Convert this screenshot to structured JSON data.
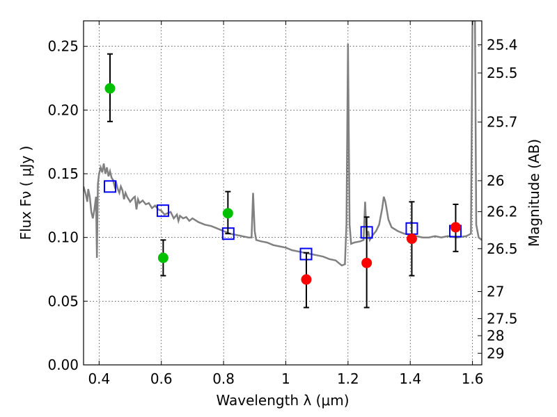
{
  "chart_data": {
    "type": "scatter",
    "title": "",
    "xlabel": "Wavelength  λ (μm)",
    "ylabel": "Flux  Fν  ( μJy )",
    "ylabel_right": "Magnitude (AB)",
    "xlim": [
      0.35,
      1.63
    ],
    "ylim": [
      0.0,
      0.27
    ],
    "grid": true,
    "x_ticks": [
      {
        "v": 0.4,
        "label": "0.4"
      },
      {
        "v": 0.6,
        "label": "0.6"
      },
      {
        "v": 0.8,
        "label": "0.8"
      },
      {
        "v": 1.0,
        "label": "1"
      },
      {
        "v": 1.2,
        "label": "1.2"
      },
      {
        "v": 1.4,
        "label": "1.4"
      },
      {
        "v": 1.6,
        "label": "1.6"
      }
    ],
    "y_ticks": [
      {
        "v": 0.0,
        "label": "0.00"
      },
      {
        "v": 0.05,
        "label": "0.05"
      },
      {
        "v": 0.1,
        "label": "0.10"
      },
      {
        "v": 0.15,
        "label": "0.15"
      },
      {
        "v": 0.2,
        "label": "0.20"
      },
      {
        "v": 0.25,
        "label": "0.25"
      }
    ],
    "mag_ticks": [
      "25.4",
      "25.5",
      "25.7",
      "26",
      "26.2",
      "26.5",
      "27",
      "27.5",
      "28",
      "29"
    ],
    "series": [
      {
        "kind": "model_spectrum",
        "color": "#808080",
        "points": [
          [
            0.35,
            0.14
          ],
          [
            0.357,
            0.134
          ],
          [
            0.362,
            0.128
          ],
          [
            0.365,
            0.138
          ],
          [
            0.37,
            0.132
          ],
          [
            0.375,
            0.12
          ],
          [
            0.38,
            0.115
          ],
          [
            0.385,
            0.122
          ],
          [
            0.39,
            0.132
          ],
          [
            0.393,
            0.084
          ],
          [
            0.396,
            0.142
          ],
          [
            0.4,
            0.15
          ],
          [
            0.405,
            0.155
          ],
          [
            0.41,
            0.151
          ],
          [
            0.415,
            0.158
          ],
          [
            0.42,
            0.15
          ],
          [
            0.425,
            0.155
          ],
          [
            0.43,
            0.148
          ],
          [
            0.435,
            0.152
          ],
          [
            0.44,
            0.147
          ],
          [
            0.445,
            0.145
          ],
          [
            0.45,
            0.14
          ],
          [
            0.455,
            0.143
          ],
          [
            0.46,
            0.138
          ],
          [
            0.465,
            0.135
          ],
          [
            0.47,
            0.14
          ],
          [
            0.475,
            0.137
          ],
          [
            0.48,
            0.13
          ],
          [
            0.485,
            0.135
          ],
          [
            0.49,
            0.132
          ],
          [
            0.5,
            0.128
          ],
          [
            0.51,
            0.131
          ],
          [
            0.515,
            0.132
          ],
          [
            0.52,
            0.122
          ],
          [
            0.525,
            0.13
          ],
          [
            0.53,
            0.127
          ],
          [
            0.54,
            0.129
          ],
          [
            0.55,
            0.126
          ],
          [
            0.56,
            0.127
          ],
          [
            0.57,
            0.123
          ],
          [
            0.58,
            0.125
          ],
          [
            0.59,
            0.122
          ],
          [
            0.6,
            0.121
          ],
          [
            0.61,
            0.118
          ],
          [
            0.62,
            0.119
          ],
          [
            0.63,
            0.12
          ],
          [
            0.64,
            0.115
          ],
          [
            0.65,
            0.118
          ],
          [
            0.655,
            0.113
          ],
          [
            0.66,
            0.117
          ],
          [
            0.67,
            0.115
          ],
          [
            0.68,
            0.116
          ],
          [
            0.69,
            0.113
          ],
          [
            0.7,
            0.115
          ],
          [
            0.72,
            0.112
          ],
          [
            0.74,
            0.11
          ],
          [
            0.76,
            0.109
          ],
          [
            0.78,
            0.107
          ],
          [
            0.8,
            0.105
          ],
          [
            0.82,
            0.103
          ],
          [
            0.84,
            0.102
          ],
          [
            0.86,
            0.101
          ],
          [
            0.88,
            0.1
          ],
          [
            0.89,
            0.1
          ],
          [
            0.895,
            0.135
          ],
          [
            0.9,
            0.105
          ],
          [
            0.905,
            0.098
          ],
          [
            0.92,
            0.097
          ],
          [
            0.94,
            0.096
          ],
          [
            0.96,
            0.094
          ],
          [
            0.98,
            0.093
          ],
          [
            1.0,
            0.092
          ],
          [
            1.02,
            0.09
          ],
          [
            1.04,
            0.089
          ],
          [
            1.06,
            0.088
          ],
          [
            1.08,
            0.087
          ],
          [
            1.1,
            0.086
          ],
          [
            1.12,
            0.085
          ],
          [
            1.14,
            0.083
          ],
          [
            1.16,
            0.082
          ],
          [
            1.17,
            0.08
          ],
          [
            1.18,
            0.078
          ],
          [
            1.19,
            0.079
          ],
          [
            1.195,
            0.11
          ],
          [
            1.2,
            0.252
          ],
          [
            1.205,
            0.11
          ],
          [
            1.21,
            0.095
          ],
          [
            1.22,
            0.096
          ],
          [
            1.24,
            0.097
          ],
          [
            1.25,
            0.098
          ],
          [
            1.255,
            0.128
          ],
          [
            1.26,
            0.1
          ],
          [
            1.265,
            0.105
          ],
          [
            1.27,
            0.098
          ],
          [
            1.28,
            0.102
          ],
          [
            1.29,
            0.105
          ],
          [
            1.3,
            0.11
          ],
          [
            1.31,
            0.123
          ],
          [
            1.315,
            0.132
          ],
          [
            1.32,
            0.128
          ],
          [
            1.33,
            0.114
          ],
          [
            1.34,
            0.108
          ],
          [
            1.36,
            0.105
          ],
          [
            1.38,
            0.103
          ],
          [
            1.4,
            0.102
          ],
          [
            1.42,
            0.101
          ],
          [
            1.44,
            0.1
          ],
          [
            1.46,
            0.1
          ],
          [
            1.48,
            0.101
          ],
          [
            1.5,
            0.1
          ],
          [
            1.52,
            0.101
          ],
          [
            1.55,
            0.1
          ],
          [
            1.58,
            0.101
          ],
          [
            1.595,
            0.103
          ],
          [
            1.6,
            0.27
          ],
          [
            1.608,
            0.27
          ],
          [
            1.612,
            0.11
          ],
          [
            1.62,
            0.1
          ],
          [
            1.63,
            0.098
          ]
        ]
      },
      {
        "kind": "model_photometry",
        "marker": "open-square",
        "color": "#0000ff",
        "x": [
          0.435,
          0.605,
          0.815,
          1.065,
          1.26,
          1.405,
          1.545
        ],
        "y": [
          0.14,
          0.121,
          0.103,
          0.087,
          0.104,
          0.107,
          0.105
        ]
      },
      {
        "kind": "observed_detected",
        "marker": "filled-circle",
        "color": "#00c000",
        "x": [
          0.435,
          0.606,
          0.814
        ],
        "y": [
          0.217,
          0.084,
          0.119
        ],
        "yerr_low": [
          0.191,
          0.07,
          0.103
        ],
        "yerr_high": [
          0.244,
          0.098,
          0.136
        ]
      },
      {
        "kind": "observed_ir",
        "marker": "filled-circle",
        "color": "#ff0000",
        "x": [
          1.066,
          1.26,
          1.405,
          1.546
        ],
        "y": [
          0.067,
          0.08,
          0.099,
          0.108
        ],
        "yerr_low": [
          0.045,
          0.045,
          0.07,
          0.089
        ],
        "yerr_high": [
          0.088,
          0.116,
          0.128,
          0.126
        ]
      }
    ]
  }
}
